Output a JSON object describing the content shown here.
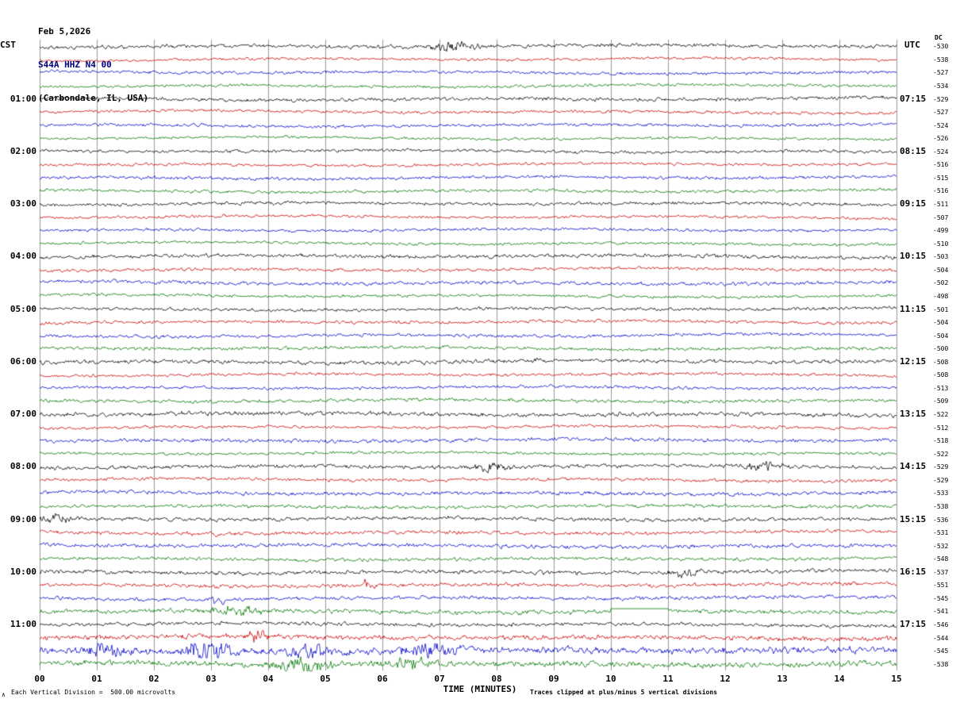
{
  "header": {
    "date": "Feb 5,2026",
    "station": "S44A HHZ N4 00",
    "location": "(Carbondale, IL, USA)"
  },
  "axes": {
    "left_tz": "CST",
    "right_tz": "UTC",
    "dc_header": "DC",
    "x_title": "TIME (MINUTES)",
    "x_ticks": [
      "00",
      "01",
      "02",
      "03",
      "04",
      "05",
      "06",
      "07",
      "08",
      "09",
      "10",
      "11",
      "12",
      "13",
      "14",
      "15"
    ]
  },
  "footer": {
    "left": "Each Vertical Division =  500.00 microvolts",
    "right": "Traces clipped at plus/minus 5 vertical divisions",
    "corner_mark": "∧"
  },
  "colors": {
    "traces": [
      "#000000",
      "#cc0000",
      "#0000cc",
      "#007700"
    ],
    "grid": "#999999",
    "station_title": "#000080"
  },
  "chart_data": {
    "type": "line",
    "title": "Helicorder record S44A HHZ N4 00 (Carbondale, IL, USA) Feb 5,2026",
    "xlabel": "TIME (MINUTES)",
    "x_range_minutes": [
      0,
      15
    ],
    "minutes_per_row": 15,
    "vertical_division_microvolts": 500.0,
    "clip_divisions": 5,
    "note": "48 consecutive 15-minute traces of ambient seismic noise; colors cycle black/red/blue/green; amplitude about one vertical division",
    "rows": [
      {
        "color": 0,
        "cst": "",
        "utc": "",
        "dc": -530
      },
      {
        "color": 1,
        "cst": "",
        "utc": "",
        "dc": -538
      },
      {
        "color": 2,
        "cst": "",
        "utc": "",
        "dc": -527
      },
      {
        "color": 3,
        "cst": "",
        "utc": "",
        "dc": -534
      },
      {
        "color": 0,
        "cst": "01:00",
        "utc": "07:15",
        "dc": -529
      },
      {
        "color": 1,
        "cst": "",
        "utc": "",
        "dc": -527
      },
      {
        "color": 2,
        "cst": "",
        "utc": "",
        "dc": -524
      },
      {
        "color": 3,
        "cst": "",
        "utc": "",
        "dc": -526
      },
      {
        "color": 0,
        "cst": "02:00",
        "utc": "08:15",
        "dc": -524
      },
      {
        "color": 1,
        "cst": "",
        "utc": "",
        "dc": -516
      },
      {
        "color": 2,
        "cst": "",
        "utc": "",
        "dc": -515
      },
      {
        "color": 3,
        "cst": "",
        "utc": "",
        "dc": -516
      },
      {
        "color": 0,
        "cst": "03:00",
        "utc": "09:15",
        "dc": -511
      },
      {
        "color": 1,
        "cst": "",
        "utc": "",
        "dc": -507
      },
      {
        "color": 2,
        "cst": "",
        "utc": "",
        "dc": -499
      },
      {
        "color": 3,
        "cst": "",
        "utc": "",
        "dc": -510
      },
      {
        "color": 0,
        "cst": "04:00",
        "utc": "10:15",
        "dc": -503
      },
      {
        "color": 1,
        "cst": "",
        "utc": "",
        "dc": -504
      },
      {
        "color": 2,
        "cst": "",
        "utc": "",
        "dc": -502
      },
      {
        "color": 3,
        "cst": "",
        "utc": "",
        "dc": -498
      },
      {
        "color": 0,
        "cst": "05:00",
        "utc": "11:15",
        "dc": -501
      },
      {
        "color": 1,
        "cst": "",
        "utc": "",
        "dc": -504
      },
      {
        "color": 2,
        "cst": "",
        "utc": "",
        "dc": -504
      },
      {
        "color": 3,
        "cst": "",
        "utc": "",
        "dc": -500
      },
      {
        "color": 0,
        "cst": "06:00",
        "utc": "12:15",
        "dc": -508
      },
      {
        "color": 1,
        "cst": "",
        "utc": "",
        "dc": -508
      },
      {
        "color": 2,
        "cst": "",
        "utc": "",
        "dc": -513
      },
      {
        "color": 3,
        "cst": "",
        "utc": "",
        "dc": -509
      },
      {
        "color": 0,
        "cst": "07:00",
        "utc": "13:15",
        "dc": -522
      },
      {
        "color": 1,
        "cst": "",
        "utc": "",
        "dc": -512
      },
      {
        "color": 2,
        "cst": "",
        "utc": "",
        "dc": -518
      },
      {
        "color": 3,
        "cst": "",
        "utc": "",
        "dc": -522
      },
      {
        "color": 0,
        "cst": "08:00",
        "utc": "14:15",
        "dc": -529
      },
      {
        "color": 1,
        "cst": "",
        "utc": "",
        "dc": -529
      },
      {
        "color": 2,
        "cst": "",
        "utc": "",
        "dc": -533
      },
      {
        "color": 3,
        "cst": "",
        "utc": "",
        "dc": -538
      },
      {
        "color": 0,
        "cst": "09:00",
        "utc": "15:15",
        "dc": -536
      },
      {
        "color": 1,
        "cst": "",
        "utc": "",
        "dc": -531
      },
      {
        "color": 2,
        "cst": "",
        "utc": "",
        "dc": -532
      },
      {
        "color": 3,
        "cst": "",
        "utc": "",
        "dc": -548
      },
      {
        "color": 0,
        "cst": "10:00",
        "utc": "16:15",
        "dc": -537
      },
      {
        "color": 1,
        "cst": "",
        "utc": "",
        "dc": -551
      },
      {
        "color": 2,
        "cst": "",
        "utc": "",
        "dc": -545
      },
      {
        "color": 3,
        "cst": "",
        "utc": "",
        "dc": -541,
        "amp": 1.2
      },
      {
        "color": 0,
        "cst": "11:00",
        "utc": "17:15",
        "dc": -546
      },
      {
        "color": 1,
        "cst": "",
        "utc": "",
        "dc": -544,
        "amp": 1.4
      },
      {
        "color": 2,
        "cst": "",
        "utc": "",
        "dc": -545,
        "amp": 1.8
      },
      {
        "color": 3,
        "cst": "",
        "utc": "",
        "dc": -538,
        "amp": 1.7
      }
    ],
    "events": [
      {
        "row": 0,
        "minute": 7.3,
        "boost": 2.5,
        "sigma": 0.25
      },
      {
        "row": 32,
        "minute": 7.9,
        "boost": 2.0,
        "sigma": 0.2
      },
      {
        "row": 32,
        "minute": 12.6,
        "boost": 2.0,
        "sigma": 0.25
      },
      {
        "row": 36,
        "minute": 0.3,
        "boost": 1.6,
        "sigma": 0.2
      },
      {
        "row": 40,
        "minute": 11.3,
        "boost": 2.0,
        "sigma": 0.15
      },
      {
        "row": 41,
        "minute": 5.7,
        "boost": 2.0,
        "sigma": 0.1
      },
      {
        "row": 42,
        "minute": 3.1,
        "boost": 3.0,
        "sigma": 0.08
      },
      {
        "row": 43,
        "minute": 3.5,
        "boost": 2.5,
        "sigma": 0.3
      },
      {
        "row": 45,
        "minute": 3.8,
        "boost": 3.0,
        "sigma": 0.1
      },
      {
        "row": 46,
        "minute": 1.2,
        "boost": 2.5,
        "sigma": 0.2
      },
      {
        "row": 46,
        "minute": 2.9,
        "boost": 3.5,
        "sigma": 0.25
      },
      {
        "row": 46,
        "minute": 4.7,
        "boost": 2.0,
        "sigma": 0.2
      },
      {
        "row": 46,
        "minute": 6.8,
        "boost": 2.2,
        "sigma": 0.3
      },
      {
        "row": 47,
        "minute": 4.6,
        "boost": 2.5,
        "sigma": 0.3
      },
      {
        "row": 47,
        "minute": 6.5,
        "boost": 2.0,
        "sigma": 0.3
      }
    ],
    "flat_segments": [
      {
        "row": 43,
        "from_minute": 10.0,
        "to_minute": 11.0,
        "offset_divisions": 0.2
      }
    ]
  }
}
